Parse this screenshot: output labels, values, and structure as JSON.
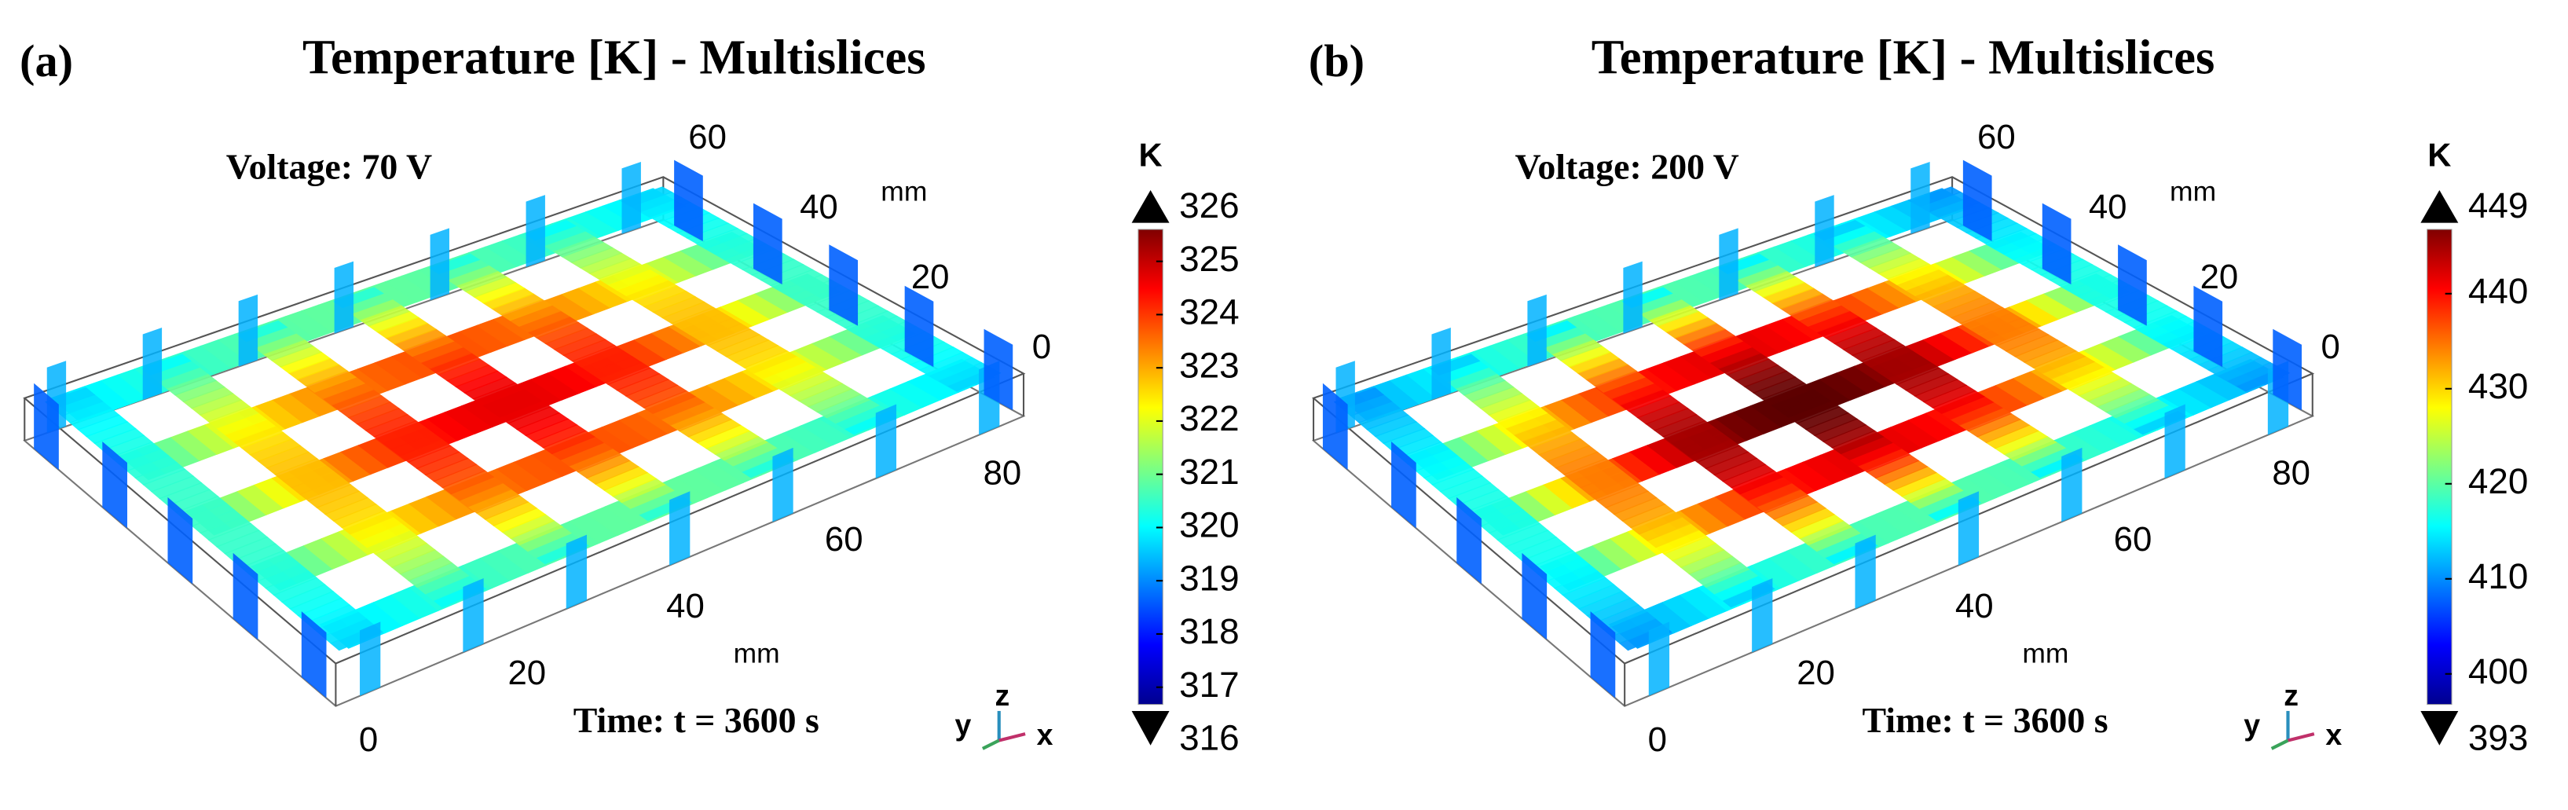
{
  "panels": [
    {
      "label": "(a)",
      "title": "Temperature [K] - Multislices",
      "voltage": "Voltage: 70 V",
      "time": "Time: t = 3600 s",
      "x_axis": {
        "lim": [
          0,
          80
        ],
        "ticks": [
          0,
          20,
          40,
          60,
          80
        ],
        "unit": "mm"
      },
      "y_axis": {
        "lim": [
          0,
          60
        ],
        "ticks": [
          0,
          20,
          40,
          60
        ],
        "unit": "mm"
      },
      "triad": {
        "z": "z",
        "y": "y",
        "x": "x"
      },
      "colorbar": {
        "unit": "K",
        "max": 326,
        "min": 316,
        "ticks": [
          317,
          318,
          319,
          320,
          321,
          322,
          323,
          324,
          325
        ]
      }
    },
    {
      "label": "(b)",
      "title": "Temperature [K] - Multislices",
      "voltage": "Voltage: 200 V",
      "time": "Time: t = 3600 s",
      "x_axis": {
        "lim": [
          0,
          80
        ],
        "ticks": [
          0,
          20,
          40,
          60,
          80
        ],
        "unit": "mm"
      },
      "y_axis": {
        "lim": [
          0,
          60
        ],
        "ticks": [
          0,
          20,
          40,
          60
        ],
        "unit": "mm"
      },
      "triad": {
        "z": "z",
        "y": "y",
        "x": "x"
      },
      "colorbar": {
        "unit": "K",
        "max": 449,
        "min": 393,
        "ticks": [
          400,
          410,
          420,
          430,
          440
        ]
      }
    }
  ]
}
